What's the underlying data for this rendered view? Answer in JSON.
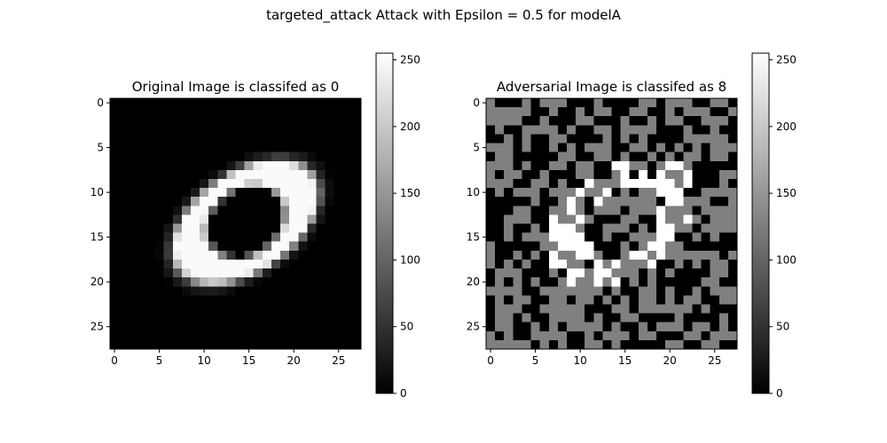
{
  "figure": {
    "suptitle": "targeted_attack Attack with Epsilon = 0.5 for modelA"
  },
  "chart_data": [
    {
      "type": "heatmap",
      "title": "Original Image is classifed as 0",
      "image_size": [
        28,
        28
      ],
      "colormap": "gray",
      "xticks": [
        0,
        5,
        10,
        15,
        20,
        25
      ],
      "yticks": [
        0,
        5,
        10,
        15,
        20,
        25
      ],
      "xlim": [
        -0.5,
        27.5
      ],
      "ylim": [
        27.5,
        -0.5
      ],
      "colorbar": {
        "range": [
          0,
          255
        ],
        "ticks": [
          0,
          50,
          100,
          150,
          200,
          250
        ]
      },
      "predicted_class": 0,
      "description_values": "MNIST digit 0: bright (~245) ellipse ring on black (0) background",
      "ring": {
        "cx": 14.6,
        "cy": 13.3,
        "rx_outer": 9.8,
        "ry_outer": 5.9,
        "rx_inner": 4.3,
        "ry_inner": 3.4,
        "angle_deg": -35,
        "peak": 250,
        "edge": 130
      }
    },
    {
      "type": "heatmap",
      "title": "Adversarial Image is classifed as 8",
      "image_size": [
        28,
        28
      ],
      "colormap": "gray",
      "xticks": [
        0,
        5,
        10,
        15,
        20,
        25
      ],
      "yticks": [
        0,
        5,
        10,
        15,
        20,
        25
      ],
      "xlim": [
        -0.5,
        27.5
      ],
      "ylim": [
        27.5,
        -0.5
      ],
      "colorbar": {
        "range": [
          0,
          255
        ],
        "ticks": [
          0,
          50,
          100,
          150,
          200,
          250
        ]
      },
      "predicted_class": 8,
      "epsilon": 0.5,
      "pixel_levels": [
        0,
        128,
        255
      ],
      "noise_seed": 7
    }
  ]
}
